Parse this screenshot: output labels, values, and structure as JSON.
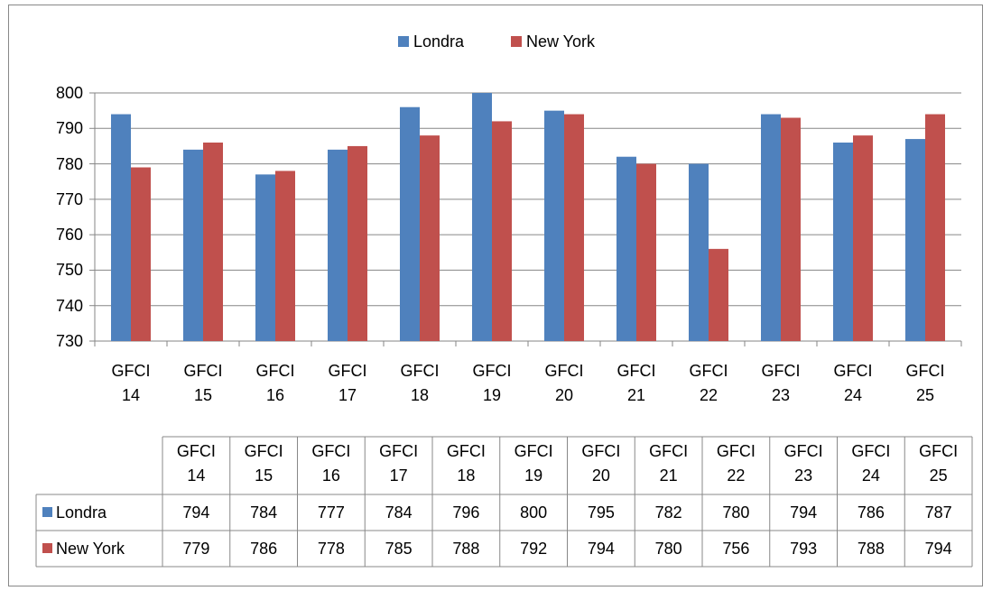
{
  "chart_data": {
    "type": "bar",
    "categories": [
      "GFCI 14",
      "GFCI 15",
      "GFCI 16",
      "GFCI 17",
      "GFCI 18",
      "GFCI 19",
      "GFCI 20",
      "GFCI 21",
      "GFCI 22",
      "GFCI 23",
      "GFCI 24",
      "GFCI 25"
    ],
    "series": [
      {
        "name": "Londra",
        "color": "#4f81bd",
        "values": [
          794,
          784,
          777,
          784,
          796,
          800,
          795,
          782,
          780,
          794,
          786,
          787
        ]
      },
      {
        "name": "New York",
        "color": "#c0504d",
        "values": [
          779,
          786,
          778,
          785,
          788,
          792,
          794,
          780,
          756,
          793,
          788,
          794
        ]
      }
    ],
    "ylim": [
      730,
      800
    ],
    "yticks": [
      730,
      740,
      750,
      760,
      770,
      780,
      790,
      800
    ],
    "grid": true,
    "legend": "top",
    "data_table": true
  }
}
